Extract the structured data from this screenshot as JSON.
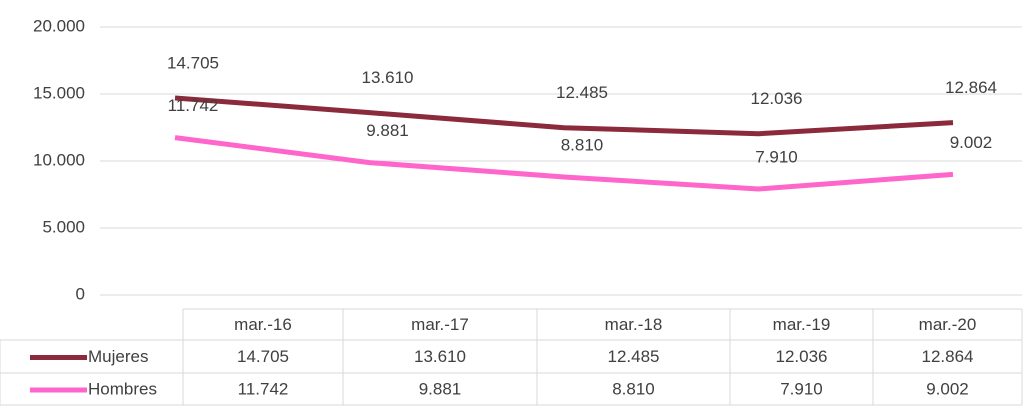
{
  "chart_data": {
    "type": "line",
    "categories": [
      "mar.-16",
      "mar.-17",
      "mar.-18",
      "mar.-19",
      "mar.-20"
    ],
    "series": [
      {
        "name": "Mujeres",
        "color": "#8b2a3a",
        "values": [
          14705,
          13610,
          12485,
          12036,
          12864
        ],
        "value_labels": [
          "14.705",
          "13.610",
          "12.485",
          "12.036",
          "12.864"
        ]
      },
      {
        "name": "Hombres",
        "color": "#ff66cc",
        "values": [
          11742,
          9881,
          8810,
          7910,
          9002
        ],
        "value_labels": [
          "11.742",
          "9.881",
          "8.810",
          "7.910",
          "9.002"
        ]
      }
    ],
    "ylim": [
      0,
      20000
    ],
    "yticks": [
      {
        "value": 0,
        "label": "0"
      },
      {
        "value": 5000,
        "label": "5.000"
      },
      {
        "value": 10000,
        "label": "10.000"
      },
      {
        "value": 15000,
        "label": "15.000"
      },
      {
        "value": 20000,
        "label": "20.000"
      }
    ],
    "grid": true,
    "legend": "table"
  }
}
